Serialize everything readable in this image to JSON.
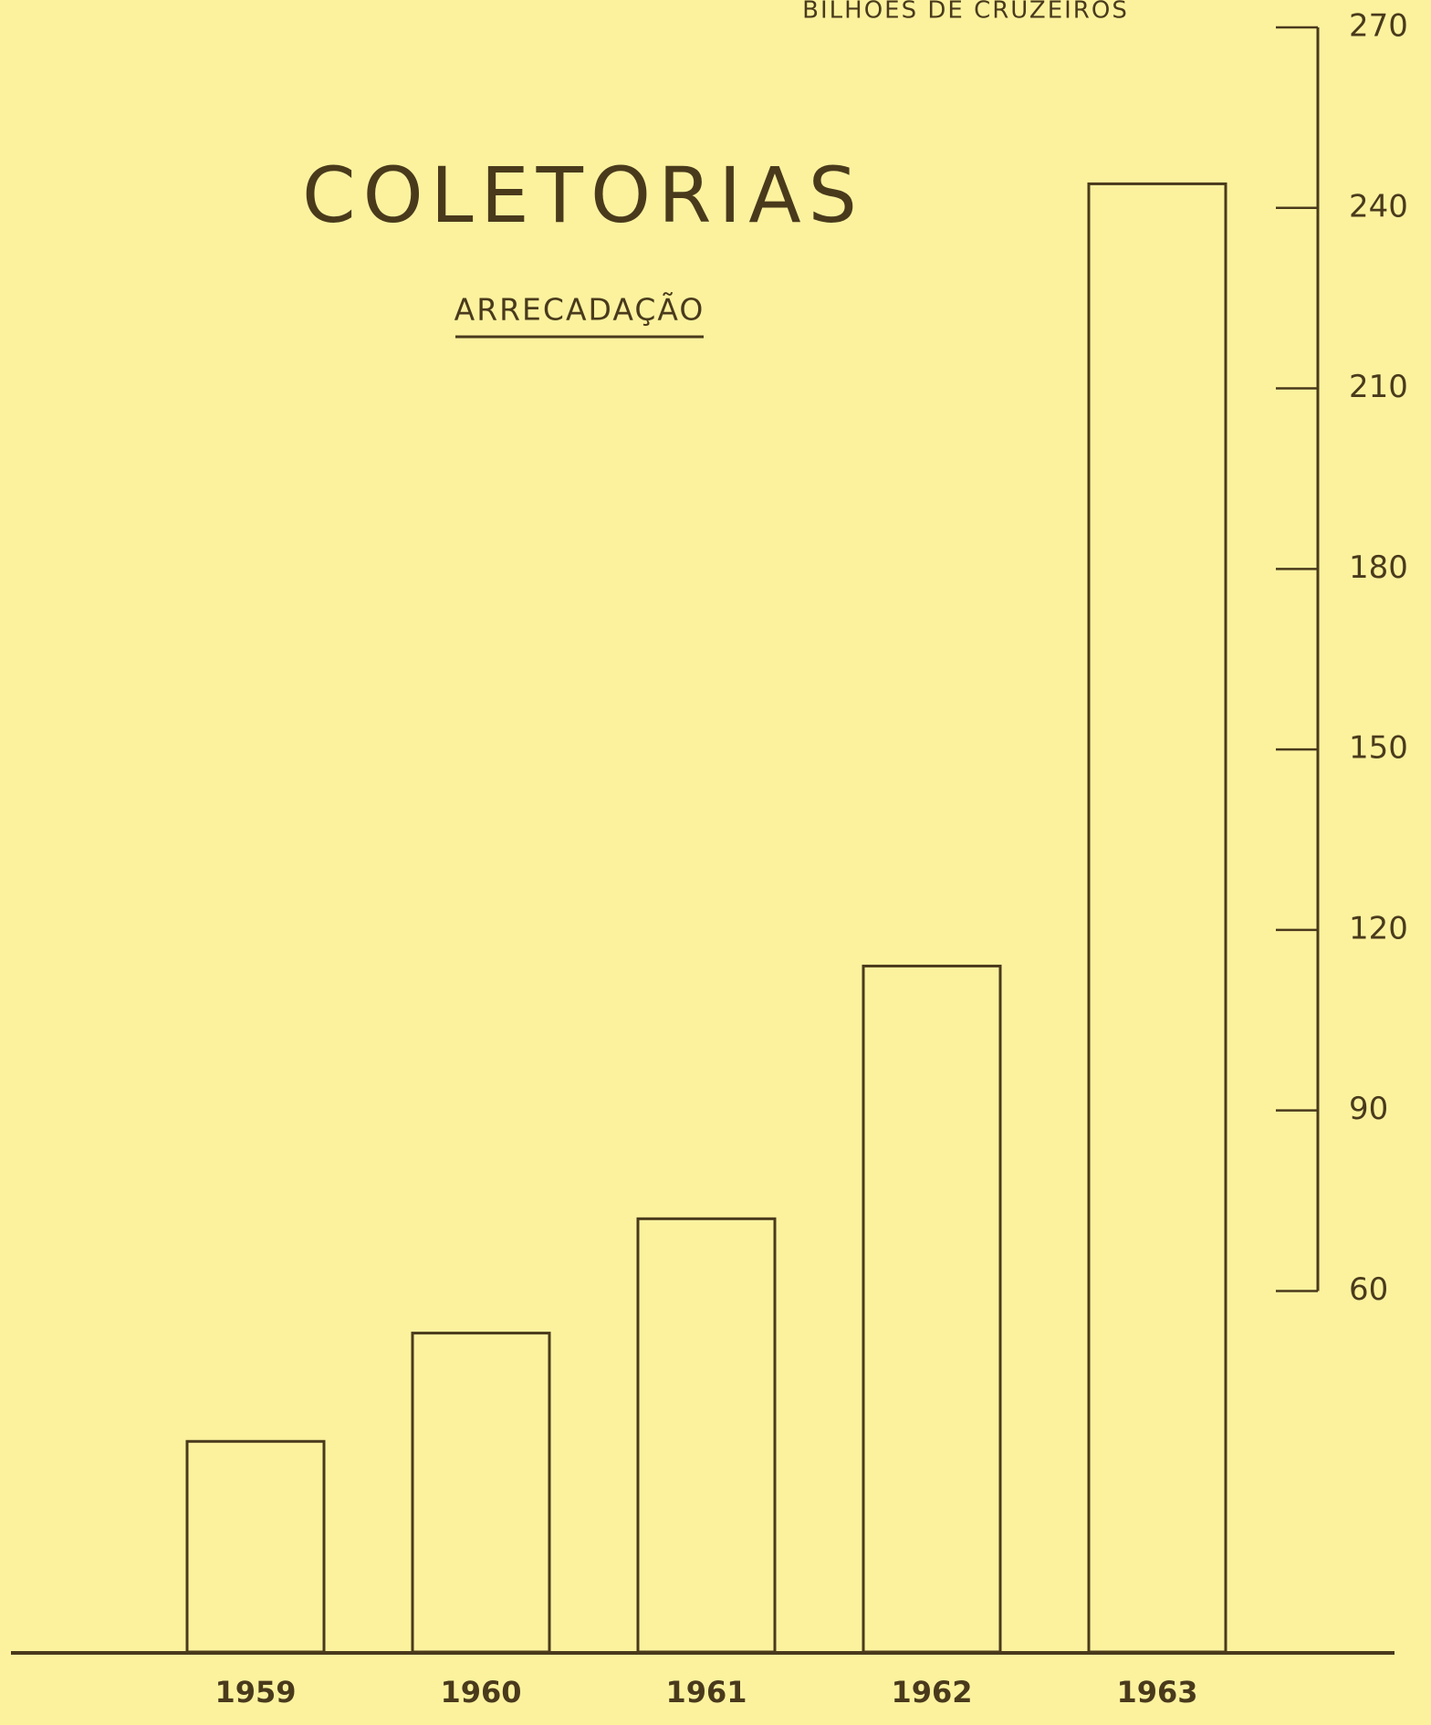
{
  "chart_data": {
    "type": "bar",
    "title": "COLETORIAS",
    "subtitle": "ARRECADAÇÃO",
    "y_label": "BILHÕES DE CRUZEIROS",
    "categories": [
      "1959",
      "1960",
      "1961",
      "1962",
      "1963"
    ],
    "values": [
      35,
      53,
      72,
      114,
      244
    ],
    "color": "none",
    "ylim": [
      0,
      270
    ],
    "yticks": [
      60,
      90,
      120,
      150,
      180,
      210,
      240,
      270
    ],
    "grid": false
  }
}
